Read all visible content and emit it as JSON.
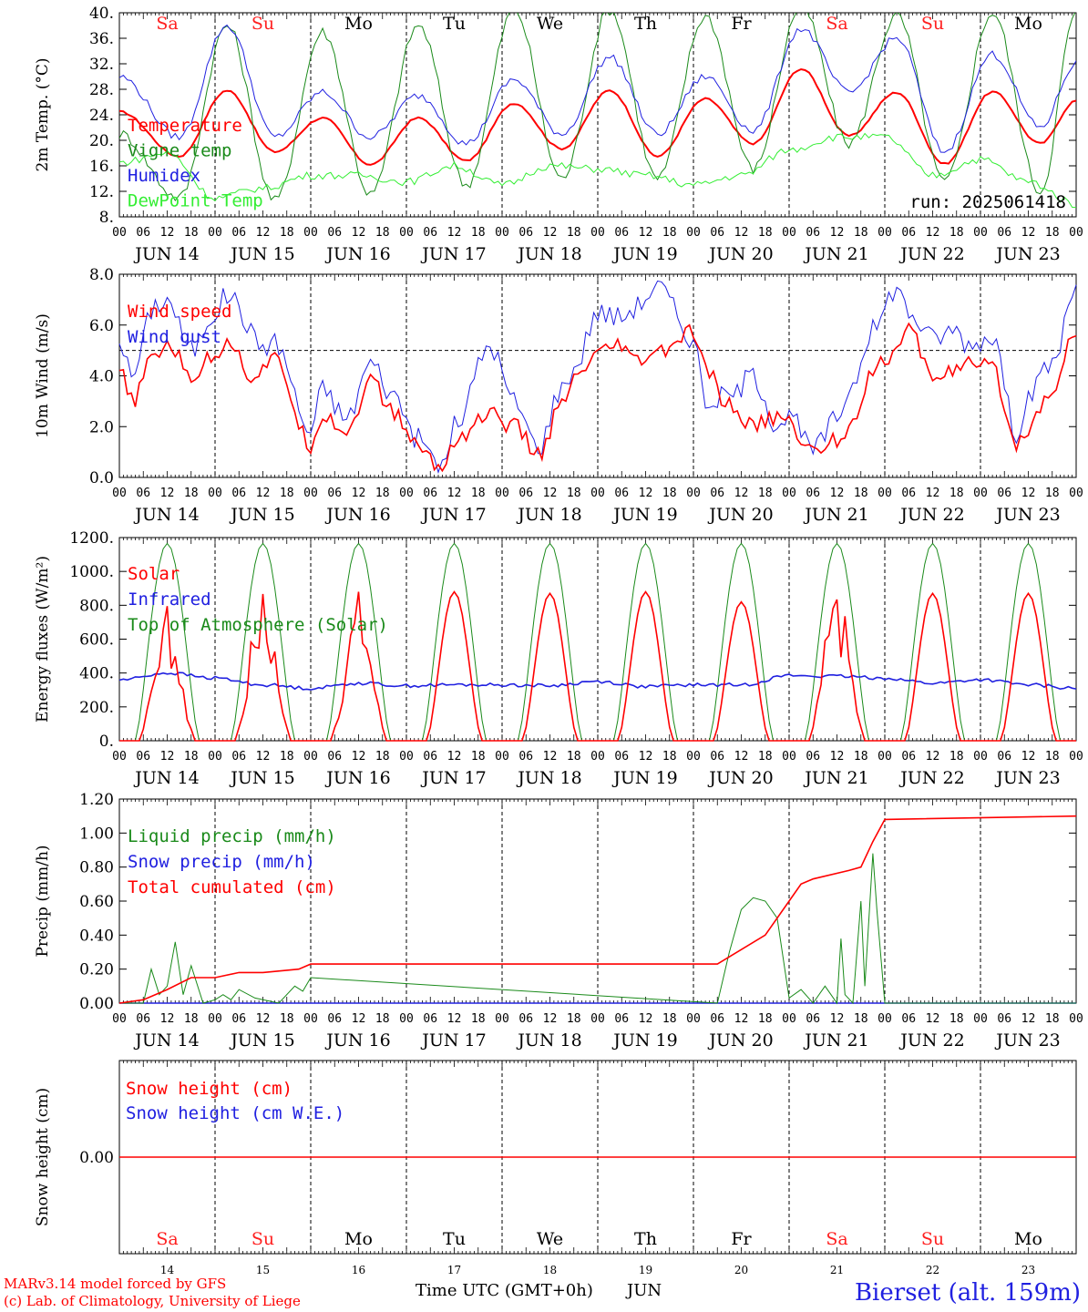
{
  "day_labels": [
    "Sa",
    "Su",
    "Mo",
    "Tu",
    "We",
    "Th",
    "Fr",
    "Sa",
    "Su",
    "Mo"
  ],
  "weekend_flags": [
    true,
    true,
    false,
    false,
    false,
    false,
    false,
    true,
    true,
    false
  ],
  "date_labels": [
    "JUN 14",
    "JUN 15",
    "JUN 16",
    "JUN 17",
    "JUN 18",
    "JUN 19",
    "JUN 20",
    "JUN 21",
    "JUN 22",
    "JUN 23"
  ],
  "day_numbers": [
    "14",
    "15",
    "16",
    "17",
    "18",
    "19",
    "20",
    "21",
    "22",
    "23"
  ],
  "hour_ticks": [
    "00",
    "06",
    "12",
    "18"
  ],
  "final_hour": "00",
  "colors": {
    "red": "#ff0000",
    "green": "#1a8a1a",
    "blue": "#2020e0",
    "lightgreen": "#33ee33",
    "weekend": "#ff2020"
  },
  "run_label": "run: 2025061418",
  "xlabel": "Time UTC (GMT+0h)",
  "month_label": "JUN",
  "footer": {
    "model": "MARv3.14 model forced by GFS",
    "copyright": "(c) Lab. of Climatology, University of Liege",
    "station": "Bierset (alt. 159m)"
  },
  "chart_data": [
    {
      "type": "line",
      "ylabel": "2m Temp. (°C)",
      "ylim": [
        8,
        40
      ],
      "ytick_labels": [
        "8.",
        "12.",
        "16.",
        "20.",
        "24.",
        "28.",
        "32.",
        "36.",
        "40."
      ],
      "legend": [
        "Temperature",
        "Vigne temp",
        "Humidex",
        "DewPoint Temp"
      ],
      "series": [
        {
          "name": "Temperature",
          "color": "red",
          "x": [
            0,
            15,
            27,
            39,
            51,
            63,
            75,
            87,
            99,
            111,
            123,
            135,
            147,
            159,
            171,
            183,
            195,
            207,
            219,
            231,
            240
          ],
          "values": [
            24.5,
            17.5,
            27.8,
            18.2,
            23.5,
            16.2,
            23.5,
            16.8,
            25.8,
            18.7,
            27.8,
            17.5,
            26.5,
            19.5,
            31.2,
            20.7,
            27.5,
            16.3,
            27.6,
            19.5,
            26.2
          ]
        },
        {
          "name": "Vigne temp",
          "color": "green",
          "x": [
            0,
            15,
            27,
            39,
            51,
            63,
            75,
            87,
            99,
            111,
            123,
            135,
            147,
            159,
            171,
            183,
            195,
            207,
            219,
            231,
            240
          ],
          "values": [
            21,
            11,
            38,
            10.5,
            37,
            11.5,
            38,
            13,
            40.5,
            14,
            40.5,
            14,
            39.5,
            15.5,
            41,
            19.5,
            39.5,
            13.5,
            40,
            12,
            40
          ]
        },
        {
          "name": "Humidex",
          "color": "blue",
          "x": [
            0,
            15,
            27,
            39,
            51,
            63,
            75,
            87,
            99,
            111,
            123,
            135,
            147,
            159,
            171,
            183,
            195,
            207,
            219,
            231,
            240
          ],
          "values": [
            30,
            20.5,
            38,
            20.5,
            27.5,
            20.5,
            27,
            19.5,
            29.5,
            21,
            33,
            21,
            30,
            21.5,
            37.5,
            27.5,
            36,
            18.2,
            33.5,
            22,
            32
          ]
        },
        {
          "name": "DewPoint Temp",
          "color": "lightgreen",
          "x": [
            0,
            12,
            24,
            36,
            48,
            60,
            72,
            84,
            96,
            108,
            120,
            132,
            144,
            156,
            168,
            180,
            192,
            204,
            216,
            228,
            240
          ],
          "values": [
            16.5,
            18,
            11,
            12.5,
            14.5,
            14.5,
            13.5,
            16,
            13,
            16,
            15.5,
            14.5,
            13,
            14.5,
            18.5,
            20.5,
            20.5,
            14.5,
            17,
            13.5,
            10
          ]
        }
      ]
    },
    {
      "type": "line",
      "ylabel": "10m Wind (m/s)",
      "ylim": [
        0,
        8
      ],
      "ytick_labels": [
        "0.0",
        "2.0",
        "4.0",
        "6.0",
        "8.0"
      ],
      "reference_line": 5,
      "legend": [
        "Wind speed",
        "Wind gust"
      ],
      "series": [
        {
          "name": "Wind speed",
          "color": "red",
          "x": [
            0,
            3,
            9,
            12,
            18,
            24,
            27,
            33,
            39,
            48,
            51,
            57,
            63,
            69,
            75,
            81,
            84,
            93,
            99,
            105,
            111,
            114,
            120,
            126,
            129,
            135,
            144,
            147,
            153,
            159,
            165,
            168,
            174,
            180,
            183,
            189,
            195,
            198,
            204,
            210,
            213,
            219,
            225,
            228,
            234,
            240
          ],
          "values": [
            4.2,
            3,
            4.8,
            5.3,
            4,
            4.8,
            5.5,
            4,
            4.6,
            1.3,
            2.5,
            1.8,
            3.8,
            2.5,
            1.2,
            0.3,
            1.5,
            2.5,
            2,
            0.9,
            2.8,
            3.8,
            4.8,
            5.2,
            4.5,
            4.9,
            5.7,
            4.2,
            2.8,
            2,
            2.4,
            2.1,
            1,
            1.5,
            2,
            4.2,
            5,
            5.8,
            4,
            4.3,
            4.4,
            4.3,
            1.3,
            2,
            3.5,
            5.8
          ]
        },
        {
          "name": "Wind gust",
          "color": "blue",
          "x": [
            0,
            3,
            9,
            12,
            18,
            24,
            27,
            36,
            39,
            48,
            51,
            57,
            63,
            69,
            75,
            81,
            84,
            93,
            99,
            105,
            111,
            114,
            120,
            126,
            129,
            135,
            144,
            147,
            153,
            159,
            165,
            168,
            174,
            180,
            183,
            189,
            195,
            198,
            204,
            210,
            213,
            219,
            225,
            228,
            234,
            240
          ],
          "values": [
            5.5,
            4,
            6.8,
            7,
            5,
            6.5,
            7.2,
            5.2,
            5.3,
            1.8,
            3.5,
            2.3,
            4.5,
            3.2,
            1.5,
            0.4,
            2,
            5.2,
            3,
            1.2,
            3.5,
            4.3,
            6.5,
            6.3,
            6.7,
            7.5,
            5.5,
            3,
            3.2,
            4,
            2.1,
            2.4,
            1.1,
            2.3,
            3.5,
            5.8,
            7.5,
            6.5,
            5.5,
            5.8,
            5.2,
            5.6,
            1.8,
            3.2,
            4.5,
            7.5
          ]
        }
      ]
    },
    {
      "type": "line",
      "ylabel": "Energy fluxes (W/m²)",
      "ylim": [
        0,
        1200
      ],
      "ytick_labels": [
        "0.",
        "200.",
        "400.",
        "600.",
        "800.",
        "1000.",
        "1200."
      ],
      "legend": [
        "Solar",
        "Infrared",
        "Top of Atmosphere (Solar)"
      ],
      "daily_peak_solar": [
        760,
        870,
        860,
        880,
        870,
        880,
        820,
        880,
        870,
        870
      ],
      "toa_peak": 1165,
      "infrared_x": [
        0,
        12,
        24,
        36,
        48,
        60,
        72,
        84,
        96,
        108,
        120,
        132,
        144,
        156,
        168,
        180,
        192,
        204,
        216,
        228,
        240
      ],
      "infrared_values": [
        360,
        400,
        370,
        330,
        310,
        340,
        325,
        330,
        330,
        325,
        350,
        320,
        330,
        330,
        385,
        380,
        370,
        340,
        360,
        330,
        310
      ]
    },
    {
      "type": "line",
      "ylabel": "Precip (mm/h)",
      "ylim": [
        0,
        1.2
      ],
      "ytick_labels": [
        "0.00",
        "0.20",
        "0.40",
        "0.60",
        "0.80",
        "1.00",
        "1.20"
      ],
      "legend": [
        "Liquid precip (mm/h)",
        "Snow precip (mm/h)",
        "Total cumulated (cm)"
      ],
      "series": [
        {
          "name": "Total cumulated (cm)",
          "color": "red",
          "x": [
            0,
            6,
            12,
            18,
            24,
            30,
            36,
            45,
            48,
            51,
            57,
            102,
            150,
            162,
            168,
            171,
            174,
            183,
            186,
            189,
            192,
            240
          ],
          "values": [
            0,
            0.02,
            0.08,
            0.15,
            0.15,
            0.18,
            0.18,
            0.2,
            0.23,
            0.23,
            0.23,
            0.23,
            0.23,
            0.4,
            0.6,
            0.7,
            0.73,
            0.78,
            0.8,
            0.95,
            1.08,
            1.1
          ]
        },
        {
          "name": "Liquid precip (mm/h)",
          "color": "green",
          "x": [
            0,
            6,
            8,
            10,
            12,
            14,
            16,
            18,
            21,
            24,
            26,
            28,
            30,
            34,
            40,
            44,
            46,
            48,
            150,
            153,
            156,
            159,
            162,
            165,
            168,
            171,
            174,
            177,
            180,
            181,
            182,
            184,
            186,
            187,
            189,
            190,
            192,
            196,
            240
          ],
          "values": [
            0,
            0,
            0.2,
            0.05,
            0.1,
            0.36,
            0.05,
            0.22,
            0,
            0.02,
            0.05,
            0.02,
            0.08,
            0.03,
            0,
            0.1,
            0.07,
            0.15,
            0,
            0.3,
            0.55,
            0.62,
            0.6,
            0.5,
            0.03,
            0.08,
            0,
            0.1,
            0,
            0.38,
            0.05,
            0,
            0.6,
            0.1,
            0.88,
            0.55,
            0,
            0,
            0
          ]
        }
      ]
    },
    {
      "type": "line",
      "ylabel": "Snow height (cm)",
      "ytick_labels": [
        "0.00"
      ],
      "legend": [
        "Snow height (cm)",
        "Snow height (cm W.E.)"
      ],
      "series": [
        {
          "name": "Snow height (cm)",
          "color": "red",
          "values": [
            0,
            0
          ]
        }
      ]
    }
  ]
}
